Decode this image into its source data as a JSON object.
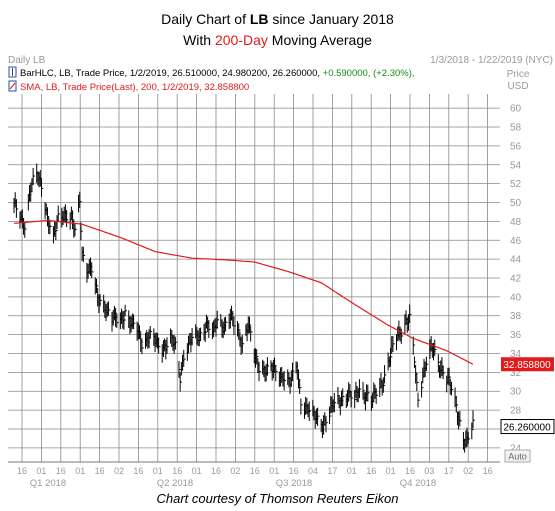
{
  "title": {
    "line1_pre": "Daily Chart of ",
    "line1_ticker": "LB",
    "line1_post": " since January 2018",
    "line2_pre": "With ",
    "line2_highlight": "200-Day",
    "line2_post": " Moving Average"
  },
  "header": {
    "left": "Daily LB",
    "right": "1/3/2018 - 1/22/2019 (NYC)"
  },
  "legend": {
    "bar_text": "BarHLC, LB, Trade Price,  1/2/2019,  26.510000,  24.980200,  26.260000,  ",
    "bar_change": "+0.590000,  (+2.30%),",
    "sma_text": "SMA, LB, Trade Price(Last),  200,  1/2/2019,  32.858800"
  },
  "credit": "Chart courtesy of Thomson Reuters Eikon",
  "colors": {
    "price": "#000000",
    "sma": "#e11a1a",
    "highlight": "#e11a1a",
    "change": "#168a16",
    "grid": "#888888",
    "bar_icon": "#2d4f9e"
  },
  "chart_data": {
    "type": "line",
    "axis_title": "Price\nUSD",
    "ylim": [
      22.5,
      61.5
    ],
    "yticks": [
      24,
      26,
      28,
      30,
      32,
      34,
      36,
      38,
      40,
      42,
      44,
      46,
      48,
      50,
      52,
      54,
      56,
      58,
      60
    ],
    "grid": true,
    "xlabel_days": [
      "16",
      "01",
      "16",
      "01",
      "16",
      "02",
      "16",
      "01",
      "16",
      "01",
      "16",
      "02",
      "16",
      "01",
      "16",
      "04",
      "17",
      "01",
      "16",
      "01",
      "16",
      "03",
      "17",
      "02",
      "16"
    ],
    "quarters": [
      "Q1 2018",
      "Q2 2018",
      "Q3 2018",
      "Q4 2018"
    ],
    "value_labels": {
      "sma_last": "32.858800",
      "price_last": "26.260000"
    },
    "footer_button": "Auto",
    "price_anchors": [
      [
        "2018-01-03",
        49.6
      ],
      [
        "2018-01-08",
        48.5
      ],
      [
        "2018-01-12",
        47.8
      ],
      [
        "2018-01-17",
        51.5
      ],
      [
        "2018-01-22",
        52.8
      ],
      [
        "2018-01-26",
        52.0
      ],
      [
        "2018-01-31",
        48.5
      ],
      [
        "2018-02-05",
        46.0
      ],
      [
        "2018-02-09",
        48.3
      ],
      [
        "2018-02-14",
        49.0
      ],
      [
        "2018-02-20",
        48.3
      ],
      [
        "2018-02-23",
        46.8
      ],
      [
        "2018-02-27",
        50.2
      ],
      [
        "2018-03-01",
        44.8
      ],
      [
        "2018-03-05",
        43.2
      ],
      [
        "2018-03-09",
        42.8
      ],
      [
        "2018-03-14",
        39.8
      ],
      [
        "2018-03-20",
        39.2
      ],
      [
        "2018-03-26",
        37.6
      ],
      [
        "2018-04-02",
        37.5
      ],
      [
        "2018-04-06",
        38.5
      ],
      [
        "2018-04-11",
        37.0
      ],
      [
        "2018-04-16",
        36.5
      ],
      [
        "2018-04-20",
        35.3
      ],
      [
        "2018-04-26",
        35.8
      ],
      [
        "2018-05-01",
        35.2
      ],
      [
        "2018-05-07",
        34.6
      ],
      [
        "2018-05-14",
        35.5
      ],
      [
        "2018-05-18",
        34.5
      ],
      [
        "2018-05-22",
        31.5
      ],
      [
        "2018-05-25",
        34.0
      ],
      [
        "2018-06-01",
        35.5
      ],
      [
        "2018-06-07",
        35.8
      ],
      [
        "2018-06-13",
        37.2
      ],
      [
        "2018-06-19",
        36.0
      ],
      [
        "2018-06-22",
        37.5
      ],
      [
        "2018-06-28",
        37.0
      ],
      [
        "2018-07-03",
        37.8
      ],
      [
        "2018-07-09",
        36.3
      ],
      [
        "2018-07-13",
        35.2
      ],
      [
        "2018-07-18",
        37.2
      ],
      [
        "2018-07-23",
        33.6
      ],
      [
        "2018-07-26",
        32.8
      ],
      [
        "2018-08-01",
        32.4
      ],
      [
        "2018-08-07",
        32.2
      ],
      [
        "2018-08-13",
        31.6
      ],
      [
        "2018-08-17",
        31.8
      ],
      [
        "2018-08-22",
        30.8
      ],
      [
        "2018-08-28",
        32.5
      ],
      [
        "2018-08-31",
        29.0
      ],
      [
        "2018-09-05",
        28.3
      ],
      [
        "2018-09-10",
        27.4
      ],
      [
        "2018-09-14",
        27.0
      ],
      [
        "2018-09-19",
        26.6
      ],
      [
        "2018-09-24",
        27.6
      ],
      [
        "2018-09-28",
        28.7
      ],
      [
        "2018-10-03",
        29.2
      ],
      [
        "2018-10-09",
        29.6
      ],
      [
        "2018-10-15",
        29.0
      ],
      [
        "2018-10-19",
        30.5
      ],
      [
        "2018-10-24",
        29.6
      ],
      [
        "2018-10-30",
        28.8
      ],
      [
        "2018-11-02",
        30.0
      ],
      [
        "2018-11-07",
        31.0
      ],
      [
        "2018-11-12",
        32.8
      ],
      [
        "2018-11-16",
        34.5
      ],
      [
        "2018-11-20",
        36.0
      ],
      [
        "2018-11-26",
        37.3
      ],
      [
        "2018-11-30",
        37.5
      ],
      [
        "2018-12-04",
        33.2
      ],
      [
        "2018-12-07",
        29.2
      ],
      [
        "2018-12-11",
        31.8
      ],
      [
        "2018-12-14",
        33.2
      ],
      [
        "2018-12-19",
        34.5
      ],
      [
        "2018-12-24",
        33.0
      ],
      [
        "2018-12-28",
        32.3
      ],
      [
        "2019-01-03",
        30.6
      ],
      [
        "2019-01-09",
        27.8
      ],
      [
        "2019-01-14",
        25.2
      ],
      [
        "2019-01-17",
        24.6
      ],
      [
        "2019-01-22",
        26.26
      ]
    ],
    "sma_anchors": [
      [
        "2018-01-03",
        47.8
      ],
      [
        "2018-02-01",
        48.1
      ],
      [
        "2018-03-01",
        47.7
      ],
      [
        "2018-04-02",
        46.3
      ],
      [
        "2018-05-01",
        44.8
      ],
      [
        "2018-06-01",
        44.1
      ],
      [
        "2018-07-02",
        43.9
      ],
      [
        "2018-07-23",
        43.7
      ],
      [
        "2018-08-20",
        42.7
      ],
      [
        "2018-09-17",
        41.5
      ],
      [
        "2018-10-15",
        39.2
      ],
      [
        "2018-11-12",
        37.0
      ],
      [
        "2018-12-03",
        35.6
      ],
      [
        "2018-12-31",
        34.3
      ],
      [
        "2019-01-22",
        32.86
      ]
    ]
  }
}
